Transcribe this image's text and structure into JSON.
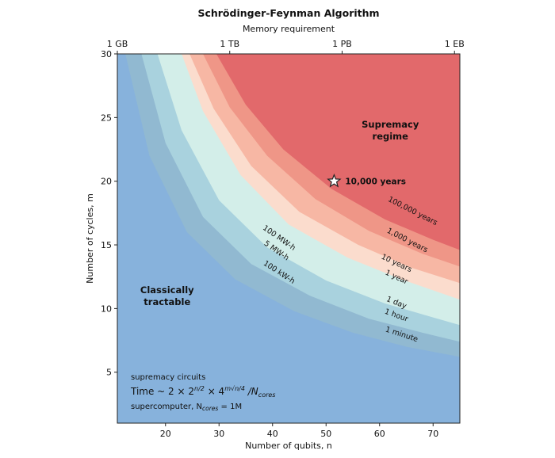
{
  "chart_data": {
    "type": "area",
    "title": "Schrödinger-Feynman Algorithm",
    "secondary_xlabel": "Memory requirement",
    "xlabel": "Number of qubits, n",
    "ylabel": "Number of cycles, m",
    "xlim": [
      11,
      75
    ],
    "ylim": [
      1,
      30
    ],
    "x_ticks": [
      20,
      30,
      40,
      50,
      60,
      70
    ],
    "y_ticks": [
      5,
      10,
      15,
      20,
      25,
      30
    ],
    "top_ticks": [
      {
        "x": 11,
        "label": "1 GB"
      },
      {
        "x": 32,
        "label": "1 TB"
      },
      {
        "x": 53,
        "label": "1 PB"
      },
      {
        "x": 74,
        "label": "1 EB"
      }
    ],
    "colors": {
      "classical": "#87b2dc",
      "band_100kwh": "#91b9d1",
      "band_5mwh": "#a9d2de",
      "band_100mwh": "#d3eee9",
      "band_1year": "#fbdccd",
      "band_10years": "#f7b7a4",
      "band_1000years": "#ef9687",
      "supremacy": "#e2696b"
    },
    "contours": [
      {
        "level": "1 minute",
        "points": [
          [
            12.5,
            30
          ],
          [
            17,
            22
          ],
          [
            24,
            16
          ],
          [
            33,
            12.3
          ],
          [
            44,
            9.8
          ],
          [
            55,
            8.1
          ],
          [
            65,
            7
          ],
          [
            75,
            6.2
          ]
        ]
      },
      {
        "level": "1 hour",
        "points": [
          [
            15.5,
            30
          ],
          [
            20,
            23
          ],
          [
            27,
            17.2
          ],
          [
            36,
            13.5
          ],
          [
            47,
            11
          ],
          [
            58,
            9.2
          ],
          [
            68,
            8.1
          ],
          [
            75,
            7.4
          ]
        ]
      },
      {
        "level": "1 day",
        "points": [
          [
            18.5,
            30
          ],
          [
            23,
            24
          ],
          [
            30,
            18.5
          ],
          [
            39,
            14.8
          ],
          [
            50,
            12.2
          ],
          [
            61,
            10.4
          ],
          [
            70,
            9.3
          ],
          [
            75,
            8.7
          ]
        ]
      },
      {
        "level": "1 year",
        "points": [
          [
            23,
            30
          ],
          [
            27,
            25.5
          ],
          [
            34,
            20.5
          ],
          [
            43,
            16.6
          ],
          [
            54,
            14
          ],
          [
            64,
            12.3
          ],
          [
            75,
            10.7
          ]
        ]
      },
      {
        "level": "10 years",
        "points": [
          [
            24.5,
            30
          ],
          [
            29,
            25.7
          ],
          [
            36,
            21.2
          ],
          [
            45,
            17.6
          ],
          [
            56,
            15
          ],
          [
            66,
            13.2
          ],
          [
            75,
            12
          ]
        ]
      },
      {
        "level": "1,000 years",
        "points": [
          [
            27,
            30
          ],
          [
            32,
            25.8
          ],
          [
            39,
            22
          ],
          [
            48,
            18.6
          ],
          [
            58,
            16.1
          ],
          [
            68,
            14.3
          ],
          [
            75,
            13.3
          ]
        ]
      },
      {
        "level": "100,000 years",
        "points": [
          [
            29.5,
            30
          ],
          [
            35,
            26
          ],
          [
            42,
            22.5
          ],
          [
            51,
            19.4
          ],
          [
            61,
            17
          ],
          [
            70,
            15.4
          ],
          [
            75,
            14.6
          ]
        ]
      }
    ],
    "annotations": {
      "supremacy_regime": "Supremacy\nregime",
      "classically_tractable": "Classically\ntractable",
      "star": {
        "x": 51.5,
        "y": 20,
        "label": "10,000 years"
      },
      "time_labels": [
        {
          "text": "100,000 years",
          "x": 66,
          "y": 17.5,
          "angle": 27
        },
        {
          "text": "1,000 years",
          "x": 65,
          "y": 15.2,
          "angle": 27
        },
        {
          "text": "10 years",
          "x": 63,
          "y": 13.4,
          "angle": 25
        },
        {
          "text": "1 year",
          "x": 63,
          "y": 12.3,
          "angle": 25
        },
        {
          "text": "1 day",
          "x": 63,
          "y": 10.3,
          "angle": 22
        },
        {
          "text": "1 hour",
          "x": 63,
          "y": 9.3,
          "angle": 20
        },
        {
          "text": "1 minute",
          "x": 64,
          "y": 7.8,
          "angle": 18
        }
      ],
      "energy_labels": [
        {
          "text": "100 MW-h",
          "x": 41,
          "y": 15.4,
          "angle": 35
        },
        {
          "text": "5 MW-h",
          "x": 40.5,
          "y": 14.4,
          "angle": 35
        },
        {
          "text": "100 kW-h",
          "x": 41,
          "y": 12.7,
          "angle": 33
        }
      ],
      "note_line1": "supremacy circuits",
      "note_line2": "Time ~ 2 × 2",
      "note_exp1": "n/2",
      "note_mid": " × 4",
      "note_exp2": "m√n/4",
      "note_end": " /N",
      "note_sub": "cores",
      "note_line3": "supercomputer, N",
      "note_line3_sub": "cores",
      "note_line3_end": " = 1M"
    }
  }
}
